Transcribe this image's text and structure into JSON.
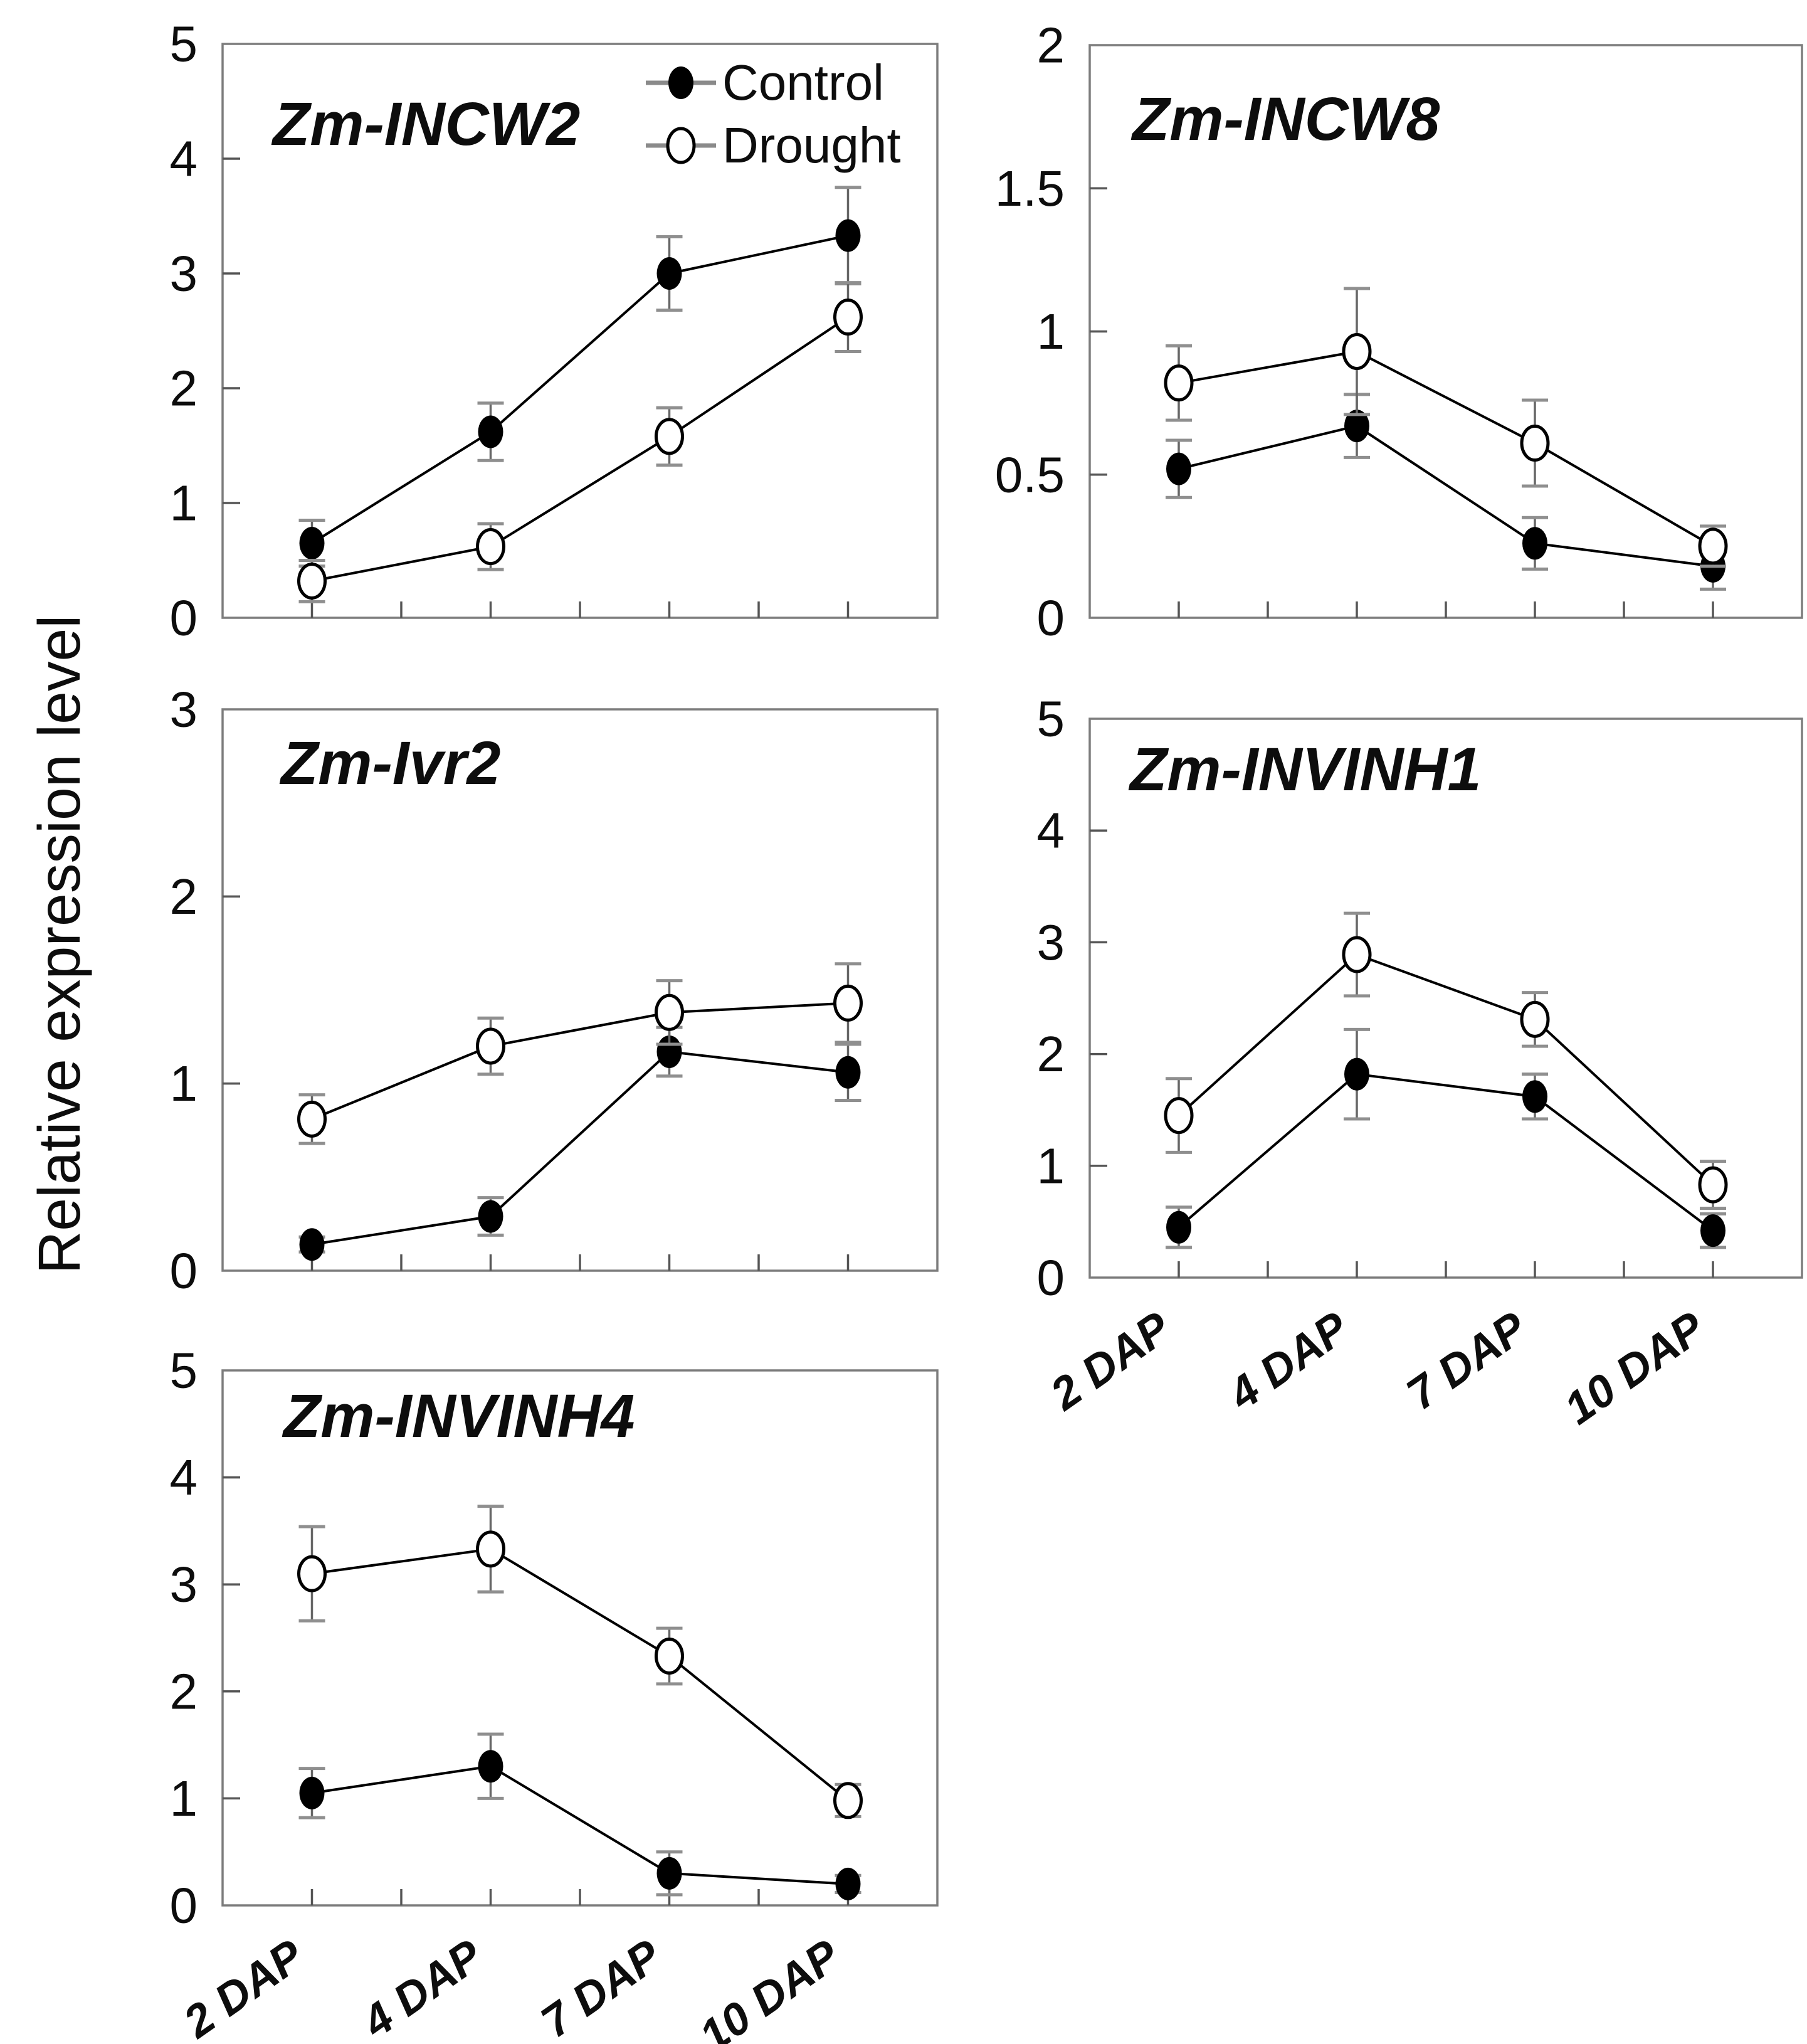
{
  "figure": {
    "ylabel": "Relative expression level",
    "background_color": "#ffffff",
    "foreground_color": "#0d0d0d",
    "frame_color": "#7d7d7d",
    "error_bar_color": "#666666",
    "legend": {
      "position": "top-right-of-first-chart",
      "entries": [
        {
          "label": "Control",
          "marker": "filled-circle"
        },
        {
          "label": "Drought",
          "marker": "open-circle"
        }
      ]
    }
  },
  "chart_data": [
    {
      "type": "line",
      "title": "Zm-INCW2",
      "categories": [
        "2 DAP",
        "4 DAP",
        "7 DAP",
        "10 DAP"
      ],
      "x_axis_labels_visible": false,
      "legend_visible": true,
      "ylim": [
        0,
        5
      ],
      "yticks": [
        0,
        1,
        2,
        3,
        4,
        5
      ],
      "grid": false,
      "series": [
        {
          "name": "Control",
          "marker": "filled-circle",
          "values": [
            0.65,
            1.62,
            3.0,
            3.33
          ],
          "errors": [
            0.2,
            0.25,
            0.32,
            0.42
          ]
        },
        {
          "name": "Drought",
          "marker": "open-circle",
          "values": [
            0.32,
            0.62,
            1.58,
            2.62
          ],
          "errors": [
            0.18,
            0.2,
            0.25,
            0.3
          ]
        }
      ]
    },
    {
      "type": "line",
      "title": "Zm-INCW8",
      "categories": [
        "2 DAP",
        "4 DAP",
        "7 DAP",
        "10 DAP"
      ],
      "x_axis_labels_visible": false,
      "legend_visible": false,
      "ylim": [
        0,
        2
      ],
      "yticks": [
        0,
        0.5,
        1,
        1.5,
        2
      ],
      "grid": false,
      "series": [
        {
          "name": "Control",
          "marker": "filled-circle",
          "values": [
            0.52,
            0.67,
            0.26,
            0.18
          ],
          "errors": [
            0.1,
            0.11,
            0.09,
            0.08
          ]
        },
        {
          "name": "Drought",
          "marker": "open-circle",
          "values": [
            0.82,
            0.93,
            0.61,
            0.25
          ],
          "errors": [
            0.13,
            0.22,
            0.15,
            0.07
          ]
        }
      ]
    },
    {
      "type": "line",
      "title": "Zm-Ivr2",
      "categories": [
        "2 DAP",
        "4 DAP",
        "7 DAP",
        "10 DAP"
      ],
      "x_axis_labels_visible": false,
      "legend_visible": false,
      "ylim": [
        0,
        3
      ],
      "yticks": [
        0,
        1,
        2,
        3
      ],
      "grid": false,
      "series": [
        {
          "name": "Control",
          "marker": "filled-circle",
          "values": [
            0.14,
            0.29,
            1.17,
            1.06
          ],
          "errors": [
            0.04,
            0.1,
            0.13,
            0.15
          ]
        },
        {
          "name": "Drought",
          "marker": "open-circle",
          "values": [
            0.81,
            1.2,
            1.38,
            1.43
          ],
          "errors": [
            0.13,
            0.15,
            0.17,
            0.21
          ]
        }
      ]
    },
    {
      "type": "line",
      "title": "Zm-INVINH1",
      "categories": [
        "2 DAP",
        "4 DAP",
        "7 DAP",
        "10 DAP"
      ],
      "x_axis_labels_visible": true,
      "legend_visible": false,
      "ylim": [
        0,
        5
      ],
      "yticks": [
        0,
        1,
        2,
        3,
        4,
        5
      ],
      "grid": false,
      "series": [
        {
          "name": "Control",
          "marker": "filled-circle",
          "values": [
            0.45,
            1.82,
            1.62,
            0.42
          ],
          "errors": [
            0.18,
            0.4,
            0.2,
            0.15
          ]
        },
        {
          "name": "Drought",
          "marker": "open-circle",
          "values": [
            1.45,
            2.89,
            2.31,
            0.83
          ],
          "errors": [
            0.33,
            0.37,
            0.24,
            0.21
          ]
        }
      ]
    },
    {
      "type": "line",
      "title": "Zm-INVINH4",
      "categories": [
        "2 DAP",
        "4 DAP",
        "7 DAP",
        "10 DAP"
      ],
      "x_axis_labels_visible": true,
      "legend_visible": false,
      "ylim": [
        0,
        5
      ],
      "yticks": [
        0,
        1,
        2,
        3,
        4,
        5
      ],
      "grid": false,
      "series": [
        {
          "name": "Control",
          "marker": "filled-circle",
          "values": [
            1.05,
            1.3,
            0.3,
            0.2
          ],
          "errors": [
            0.23,
            0.3,
            0.2,
            0.08
          ]
        },
        {
          "name": "Drought",
          "marker": "open-circle",
          "values": [
            3.1,
            3.33,
            2.33,
            0.98
          ],
          "errors": [
            0.44,
            0.4,
            0.26,
            0.15
          ]
        }
      ]
    }
  ]
}
